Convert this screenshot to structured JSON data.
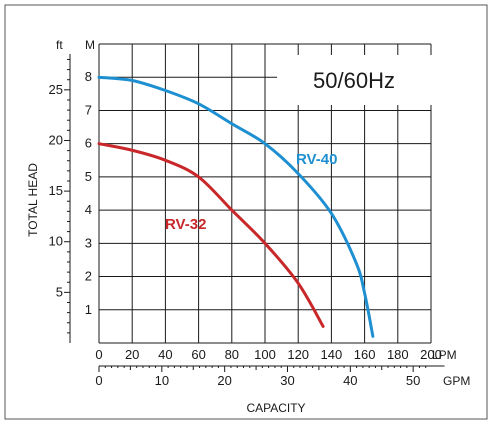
{
  "chart_data": {
    "type": "line",
    "frequency_label": "50/60Hz",
    "y_axis_label": "TOTAL HEAD",
    "x_axis_label": "CAPACITY",
    "ft_unit": "ft",
    "m_unit": "M",
    "lpm_unit": "LPM",
    "gpm_unit": "GPM",
    "lpm_range": [
      0,
      200
    ],
    "m_range": [
      0,
      9
    ],
    "lpm_ticks": [
      0,
      20,
      40,
      60,
      80,
      100,
      120,
      140,
      160,
      180,
      200
    ],
    "gpm_ticks": [
      0,
      10,
      20,
      30,
      40,
      50
    ],
    "m_ticks": [
      1,
      2,
      3,
      4,
      5,
      6,
      7,
      8
    ],
    "ft_ticks": [
      5,
      10,
      15,
      20,
      25
    ],
    "grid": true,
    "series": [
      {
        "name": "RV-40",
        "color": "#1e8fd0",
        "points": [
          [
            0,
            8.0
          ],
          [
            20,
            7.9
          ],
          [
            40,
            7.6
          ],
          [
            60,
            7.2
          ],
          [
            80,
            6.6
          ],
          [
            100,
            6.0
          ],
          [
            120,
            5.1
          ],
          [
            140,
            3.9
          ],
          [
            155,
            2.4
          ],
          [
            160,
            1.5
          ],
          [
            165,
            0.2
          ]
        ]
      },
      {
        "name": "RV-32",
        "color": "#c8282a",
        "points": [
          [
            0,
            6.0
          ],
          [
            20,
            5.8
          ],
          [
            40,
            5.5
          ],
          [
            60,
            5.0
          ],
          [
            80,
            4.0
          ],
          [
            100,
            3.0
          ],
          [
            120,
            1.8
          ],
          [
            135,
            0.5
          ]
        ]
      }
    ]
  }
}
